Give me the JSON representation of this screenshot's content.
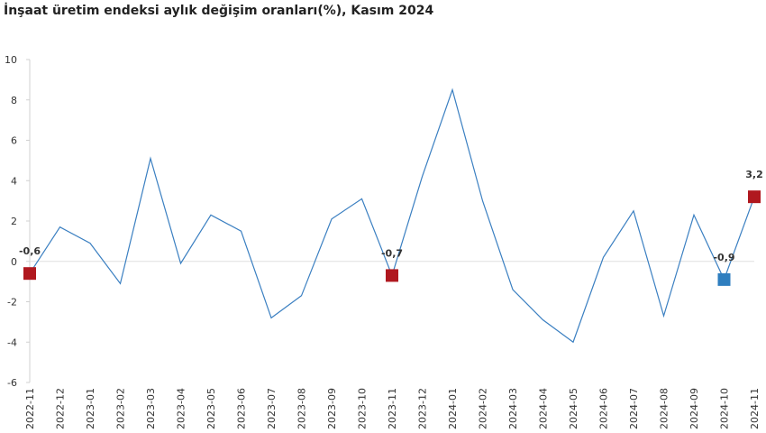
{
  "chart_data": {
    "type": "line",
    "title": "İnşaat üretim endeksi aylık değişim oranları(%), Kasım 2024",
    "categories": [
      "2022-11",
      "2022-12",
      "2023-01",
      "2023-02",
      "2023-03",
      "2023-04",
      "2023-05",
      "2023-06",
      "2023-07",
      "2023-08",
      "2023-09",
      "2023-10",
      "2023-11",
      "2023-12",
      "2024-01",
      "2024-02",
      "2024-03",
      "2024-04",
      "2024-05",
      "2024-06",
      "2024-07",
      "2024-08",
      "2024-09",
      "2024-10",
      "2024-11"
    ],
    "values": [
      -0.6,
      1.7,
      0.9,
      -1.1,
      5.1,
      -0.1,
      2.3,
      1.5,
      -2.8,
      -1.7,
      2.1,
      3.1,
      -0.7,
      4.2,
      8.5,
      3.0,
      -1.4,
      -2.9,
      -4.0,
      0.2,
      2.5,
      -2.7,
      2.3,
      -0.9,
      3.2
    ],
    "value_labels": [
      "-0,6",
      null,
      null,
      null,
      null,
      null,
      null,
      null,
      null,
      null,
      null,
      null,
      "-0,7",
      null,
      null,
      null,
      null,
      null,
      null,
      null,
      null,
      null,
      null,
      "-0,9",
      "3,2"
    ],
    "marker_colors": [
      "#b0181f",
      null,
      null,
      null,
      null,
      null,
      null,
      null,
      null,
      null,
      null,
      null,
      "#b0181f",
      null,
      null,
      null,
      null,
      null,
      null,
      null,
      null,
      null,
      null,
      "#2e7ebf",
      "#b0181f"
    ],
    "color": "#3a7fc1",
    "ylim": [
      -6,
      10
    ],
    "yticks": [
      -6,
      -4,
      -2,
      0,
      2,
      4,
      6,
      8,
      10
    ]
  }
}
